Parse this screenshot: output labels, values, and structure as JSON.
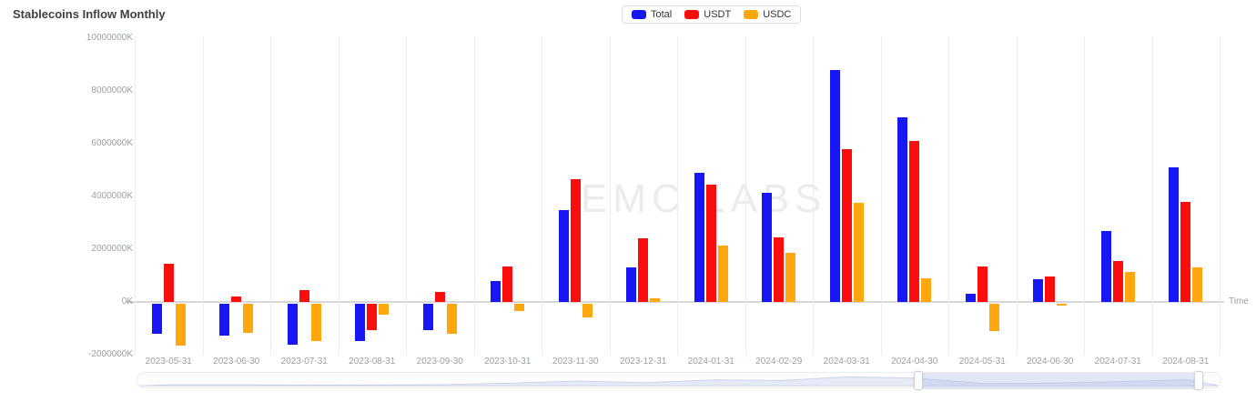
{
  "title": "Stablecoins Inflow Monthly",
  "watermark": "EMC LABS",
  "legend": {
    "items": [
      {
        "label": "Total",
        "color": "#1717f6"
      },
      {
        "label": "USDT",
        "color": "#fb0d0d"
      },
      {
        "label": "USDC",
        "color": "#ffa70f"
      }
    ]
  },
  "axis": {
    "time_label": "Time",
    "y_ticks": [
      {
        "value": 10000000,
        "label": "10000000K"
      },
      {
        "value": 8000000,
        "label": "8000000K"
      },
      {
        "value": 6000000,
        "label": "6000000K"
      },
      {
        "value": 4000000,
        "label": "4000000K"
      },
      {
        "value": 2000000,
        "label": "2000000K"
      },
      {
        "value": 0,
        "label": "0K"
      },
      {
        "value": -2000000,
        "label": "-2000000K"
      }
    ]
  },
  "chart_data": {
    "type": "bar",
    "title": "Stablecoins Inflow Monthly",
    "xlabel": "Time",
    "ylabel": "",
    "unit": "K",
    "ylim": [
      -2000000,
      10000000
    ],
    "grid": "vertical-only",
    "legend_position": "top-center",
    "categories": [
      "2023-05-31",
      "2023-06-30",
      "2023-07-31",
      "2023-08-31",
      "2023-09-30",
      "2023-10-31",
      "2023-11-30",
      "2023-12-31",
      "2024-01-31",
      "2024-02-29",
      "2024-03-31",
      "2024-04-30",
      "2024-05-31",
      "2024-06-30",
      "2024-07-31",
      "2024-08-31"
    ],
    "series": [
      {
        "name": "Total",
        "color": "#1717f6",
        "values": [
          -1150000,
          -1200000,
          -1550000,
          -1400000,
          -1000000,
          800000,
          3500000,
          1300000,
          4900000,
          4150000,
          8800000,
          7000000,
          320000,
          870000,
          2700000,
          5100000
        ]
      },
      {
        "name": "USDT",
        "color": "#fb0d0d",
        "values": [
          1450000,
          200000,
          450000,
          -1000000,
          380000,
          1350000,
          4650000,
          2400000,
          4450000,
          2450000,
          5800000,
          6100000,
          1350000,
          950000,
          1550000,
          3800000
        ]
      },
      {
        "name": "USDC",
        "color": "#ffa70f",
        "values": [
          -1600000,
          -1100000,
          -1430000,
          -420000,
          -1150000,
          -260000,
          -500000,
          150000,
          2150000,
          1850000,
          3750000,
          900000,
          -1050000,
          -60000,
          1150000,
          1300000
        ]
      }
    ]
  },
  "data_zoom": {
    "selected_start_pct": 72,
    "selected_end_pct": 97.8
  }
}
